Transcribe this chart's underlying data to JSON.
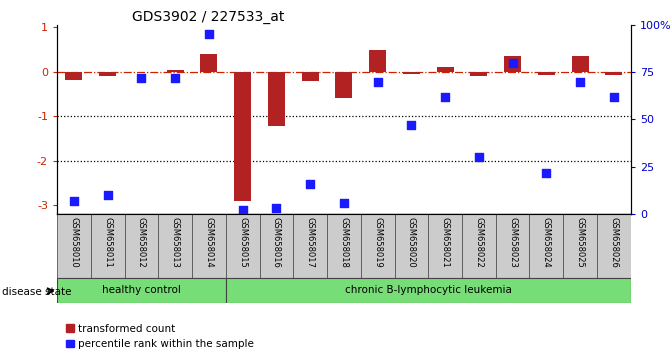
{
  "title": "GDS3902 / 227533_at",
  "samples": [
    "GSM658010",
    "GSM658011",
    "GSM658012",
    "GSM658013",
    "GSM658014",
    "GSM658015",
    "GSM658016",
    "GSM658017",
    "GSM658018",
    "GSM658019",
    "GSM658020",
    "GSM658021",
    "GSM658022",
    "GSM658023",
    "GSM658024",
    "GSM658025",
    "GSM658026"
  ],
  "transformed_count": [
    -0.18,
    -0.1,
    0.0,
    0.04,
    0.4,
    -2.9,
    -1.22,
    -0.22,
    -0.6,
    0.48,
    -0.05,
    0.1,
    -0.1,
    0.36,
    -0.08,
    0.35,
    -0.08
  ],
  "percentile_rank": [
    7,
    10,
    72,
    72,
    95,
    2,
    3,
    16,
    6,
    70,
    47,
    62,
    30,
    80,
    22,
    70,
    62
  ],
  "ylim_left": [
    -3.2,
    1.05
  ],
  "ylim_right": [
    0,
    100
  ],
  "right_ticks": [
    0,
    25,
    50,
    75,
    100
  ],
  "right_tick_labels": [
    "0",
    "25",
    "50",
    "75",
    "100%"
  ],
  "left_ticks": [
    -3,
    -2,
    -1,
    0,
    1
  ],
  "dotted_lines": [
    -1,
    -2
  ],
  "bar_color": "#b22222",
  "dot_color": "#1a1aff",
  "healthy_control_count": 5,
  "disease_state_label": "disease state",
  "healthy_label": "healthy control",
  "leukemia_label": "chronic B-lymphocytic leukemia",
  "legend_red_label": "transformed count",
  "legend_blue_label": "percentile rank within the sample"
}
